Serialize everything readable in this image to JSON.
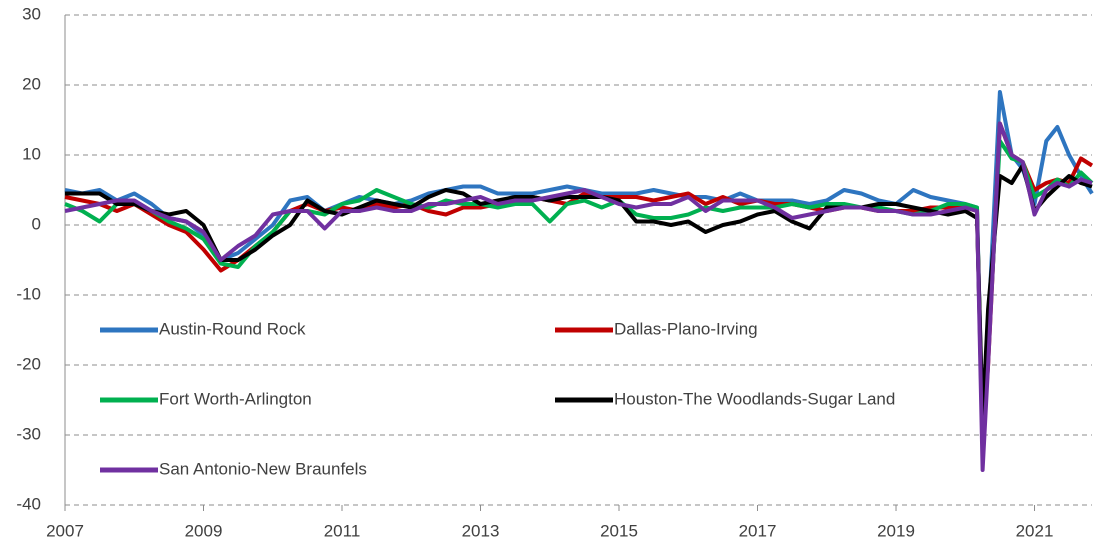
{
  "chart_data": {
    "type": "line",
    "x": [
      2007,
      2007.25,
      2007.5,
      2007.75,
      2008,
      2008.25,
      2008.5,
      2008.75,
      2009,
      2009.25,
      2009.5,
      2009.75,
      2010,
      2010.25,
      2010.5,
      2010.75,
      2011,
      2011.25,
      2011.5,
      2011.75,
      2012,
      2012.25,
      2012.5,
      2012.75,
      2013,
      2013.25,
      2013.5,
      2013.75,
      2014,
      2014.25,
      2014.5,
      2014.75,
      2015,
      2015.25,
      2015.5,
      2015.75,
      2016,
      2016.25,
      2016.5,
      2016.75,
      2017,
      2017.25,
      2017.5,
      2017.75,
      2018,
      2018.25,
      2018.5,
      2018.75,
      2019,
      2019.25,
      2019.5,
      2019.75,
      2020,
      2020.17,
      2020.25,
      2020.33,
      2020.5,
      2020.67,
      2020.83,
      2021,
      2021.17,
      2021.33,
      2021.5,
      2021.67,
      2021.83
    ],
    "series": [
      {
        "name": "Austin-Round Rock",
        "color": "#2e75c0",
        "values": [
          5,
          4.5,
          5,
          3.5,
          4.5,
          3,
          1,
          0.5,
          -1.5,
          -5,
          -4,
          -2,
          0,
          3.5,
          4,
          2,
          3,
          4,
          3.5,
          3,
          3.5,
          4.5,
          5,
          5.5,
          5.5,
          4.5,
          4.5,
          4.5,
          5,
          5.5,
          5,
          4.5,
          4.5,
          4.5,
          5,
          4.5,
          4,
          4,
          3.5,
          4.5,
          3.5,
          3.5,
          3.5,
          3,
          3.5,
          5,
          4.5,
          3.5,
          3,
          5,
          4,
          3.5,
          3,
          2.5,
          -30,
          -15,
          19,
          10,
          8,
          3,
          12,
          14,
          10,
          7,
          4.5
        ]
      },
      {
        "name": "Dallas-Plano-Irving",
        "color": "#c00000",
        "values": [
          4,
          3.5,
          3,
          2,
          3,
          1.5,
          0,
          -1,
          -3.5,
          -6.5,
          -5,
          -3,
          -1,
          2,
          3,
          2,
          2.5,
          2,
          3,
          2.5,
          3,
          2,
          1.5,
          2.5,
          2.5,
          3,
          3,
          4,
          3.5,
          3,
          4.5,
          4,
          4,
          4,
          3.5,
          4,
          4.5,
          3,
          4,
          3,
          3.5,
          3,
          3,
          2.5,
          2,
          2.5,
          2.5,
          2,
          2,
          2,
          2.5,
          2.5,
          2.5,
          2,
          -31,
          -20,
          14.5,
          10,
          9,
          5,
          6,
          6.5,
          6,
          9.5,
          8.5
        ]
      },
      {
        "name": "Fort Worth-Arlington",
        "color": "#00b050",
        "values": [
          3,
          2,
          0.5,
          3,
          3,
          2,
          0.5,
          -0.5,
          -2,
          -5.5,
          -6,
          -3,
          -1,
          2,
          2,
          1.5,
          3,
          3.5,
          5,
          4,
          3,
          2.5,
          3.5,
          3,
          3,
          2.5,
          3,
          3,
          0.5,
          3,
          3.5,
          2.5,
          3.5,
          1.5,
          1,
          1,
          1.5,
          2.5,
          2,
          2.5,
          2.5,
          2.5,
          3,
          2.5,
          3,
          3,
          2.5,
          2.5,
          2,
          1.5,
          2,
          3,
          3,
          2.5,
          -32,
          -18,
          12,
          9.5,
          9,
          4,
          5,
          6.5,
          5.5,
          7.5,
          6
        ]
      },
      {
        "name": "Houston-The Woodlands-Sugar Land",
        "color": "#000000",
        "values": [
          4.5,
          4.5,
          4.5,
          3,
          3,
          2,
          1.5,
          2,
          0,
          -5,
          -5,
          -3.5,
          -1.5,
          0,
          3.5,
          2,
          1.5,
          2.5,
          3.5,
          3,
          2.5,
          4,
          5,
          4.5,
          3,
          3.5,
          4,
          4,
          3.5,
          4,
          4,
          4,
          3.5,
          0.5,
          0.5,
          0,
          0.5,
          -1,
          0,
          0.5,
          1.5,
          2,
          0.5,
          -0.5,
          2.5,
          2.5,
          2.5,
          3,
          3,
          2.5,
          2,
          1.5,
          2,
          1,
          -28,
          -12,
          7,
          6,
          8.5,
          2,
          4,
          5.5,
          7,
          6,
          5.5
        ]
      },
      {
        "name": "San Antonio-New Braunfels",
        "color": "#7030a0",
        "values": [
          2,
          2.5,
          3,
          3.5,
          3.5,
          2,
          1,
          0.5,
          -1,
          -5,
          -3,
          -1.5,
          1.5,
          2,
          2,
          -0.5,
          2,
          2,
          2.5,
          2,
          2,
          3,
          3,
          3.5,
          4,
          3,
          3.5,
          3.5,
          4,
          4.5,
          5,
          4,
          3,
          2.5,
          3,
          3,
          4,
          2,
          3.5,
          3.5,
          3.5,
          2.5,
          1,
          1.5,
          2,
          2.5,
          2.5,
          2,
          2,
          1.5,
          1.5,
          2,
          2.5,
          2,
          -35,
          -20,
          14.5,
          10,
          9,
          1.5,
          5,
          6,
          5.5,
          6.5,
          6
        ]
      }
    ],
    "xlim": [
      2007,
      2021.83
    ],
    "xticks": [
      2007,
      2009,
      2011,
      2013,
      2015,
      2017,
      2019,
      2021
    ],
    "ylim": [
      -40,
      30
    ],
    "yticks": [
      -40,
      -30,
      -20,
      -10,
      0,
      10,
      20,
      30
    ],
    "grid": true,
    "legend": "lower left"
  }
}
